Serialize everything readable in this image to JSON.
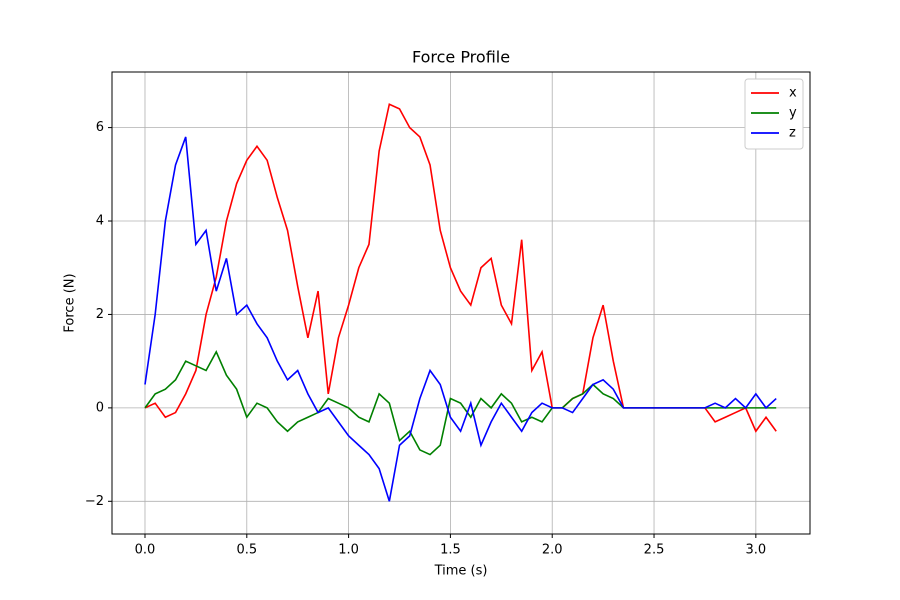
{
  "chart_data": {
    "type": "line",
    "title": "Force Profile",
    "x_label": "Time (s)",
    "y_label": "Force (N)",
    "x": [
      0,
      0.05,
      0.1,
      0.15,
      0.2,
      0.25,
      0.3,
      0.35,
      0.4,
      0.45,
      0.5,
      0.55,
      0.6,
      0.65,
      0.7,
      0.75,
      0.8,
      0.85,
      0.9,
      0.95,
      1.0,
      1.05,
      1.1,
      1.15,
      1.2,
      1.25,
      1.3,
      1.35,
      1.4,
      1.45,
      1.5,
      1.55,
      1.6,
      1.65,
      1.7,
      1.75,
      1.8,
      1.85,
      1.9,
      1.95,
      2.0,
      2.05,
      2.1,
      2.15,
      2.2,
      2.25,
      2.3,
      2.35,
      2.4,
      2.45,
      2.5,
      2.55,
      2.6,
      2.65,
      2.7,
      2.75,
      2.8,
      2.85,
      2.9,
      2.95,
      3.0,
      3.05,
      3.1
    ],
    "series": [
      {
        "name": "x",
        "color": "#ff0000",
        "values": [
          0,
          0.1,
          -0.2,
          -0.1,
          0.3,
          0.8,
          2.0,
          2.8,
          4.0,
          4.8,
          5.3,
          5.6,
          5.3,
          4.5,
          3.8,
          2.6,
          1.5,
          2.5,
          0.3,
          1.5,
          2.2,
          3.0,
          3.5,
          5.5,
          6.5,
          6.4,
          6.0,
          5.8,
          5.2,
          3.8,
          3.0,
          2.5,
          2.2,
          3.0,
          3.2,
          2.2,
          1.8,
          3.6,
          0.8,
          1.2,
          0,
          0,
          0.2,
          0.3,
          1.5,
          2.2,
          1.0,
          0,
          0,
          0,
          0,
          0,
          0,
          0,
          0,
          0,
          -0.3,
          -0.2,
          -0.1,
          0,
          -0.5,
          -0.2,
          -0.5
        ]
      },
      {
        "name": "y",
        "color": "#008000",
        "values": [
          0,
          0.3,
          0.4,
          0.6,
          1.0,
          0.9,
          0.8,
          1.2,
          0.7,
          0.4,
          -0.2,
          0.1,
          0,
          -0.3,
          -0.5,
          -0.3,
          -0.2,
          -0.1,
          0.2,
          0.1,
          0,
          -0.2,
          -0.3,
          0.3,
          0.1,
          -0.7,
          -0.5,
          -0.9,
          -1.0,
          -0.8,
          0.2,
          0.1,
          -0.2,
          0.2,
          0,
          0.3,
          0.1,
          -0.3,
          -0.2,
          -0.3,
          0,
          0,
          0.2,
          0.3,
          0.5,
          0.3,
          0.2,
          0,
          0,
          0,
          0,
          0,
          0,
          0,
          0,
          0,
          0,
          0,
          0,
          0,
          0,
          0,
          0
        ]
      },
      {
        "name": "z",
        "color": "#0000ff",
        "values": [
          0.5,
          2.0,
          4.0,
          5.2,
          5.8,
          3.5,
          3.8,
          2.5,
          3.2,
          2.0,
          2.2,
          1.8,
          1.5,
          1.0,
          0.6,
          0.8,
          0.3,
          -0.1,
          0,
          -0.3,
          -0.6,
          -0.8,
          -1.0,
          -1.3,
          -2.0,
          -0.8,
          -0.6,
          0.2,
          0.8,
          0.5,
          -0.2,
          -0.5,
          0.1,
          -0.8,
          -0.3,
          0.1,
          -0.2,
          -0.5,
          -0.1,
          0.1,
          0,
          0,
          -0.1,
          0.2,
          0.5,
          0.6,
          0.4,
          0,
          0,
          0,
          0,
          0,
          0,
          0,
          0,
          0,
          0.1,
          0,
          0.2,
          0,
          0.3,
          0,
          0.2
        ]
      }
    ],
    "xlim": [
      -0.162,
      3.266
    ],
    "ylim": [
      -2.7,
      7.19
    ],
    "xticks": [
      {
        "value": 0,
        "label": "0.0"
      },
      0.5,
      {
        "value": 1,
        "label": "1.0"
      },
      1.5,
      {
        "value": 2,
        "label": "2.0"
      },
      2.5,
      {
        "value": 3,
        "label": "3.0"
      }
    ],
    "yticks": [
      {
        "value": -2,
        "label": "−2"
      },
      0,
      2,
      4,
      6
    ],
    "grid": true,
    "legend": "upper right"
  }
}
